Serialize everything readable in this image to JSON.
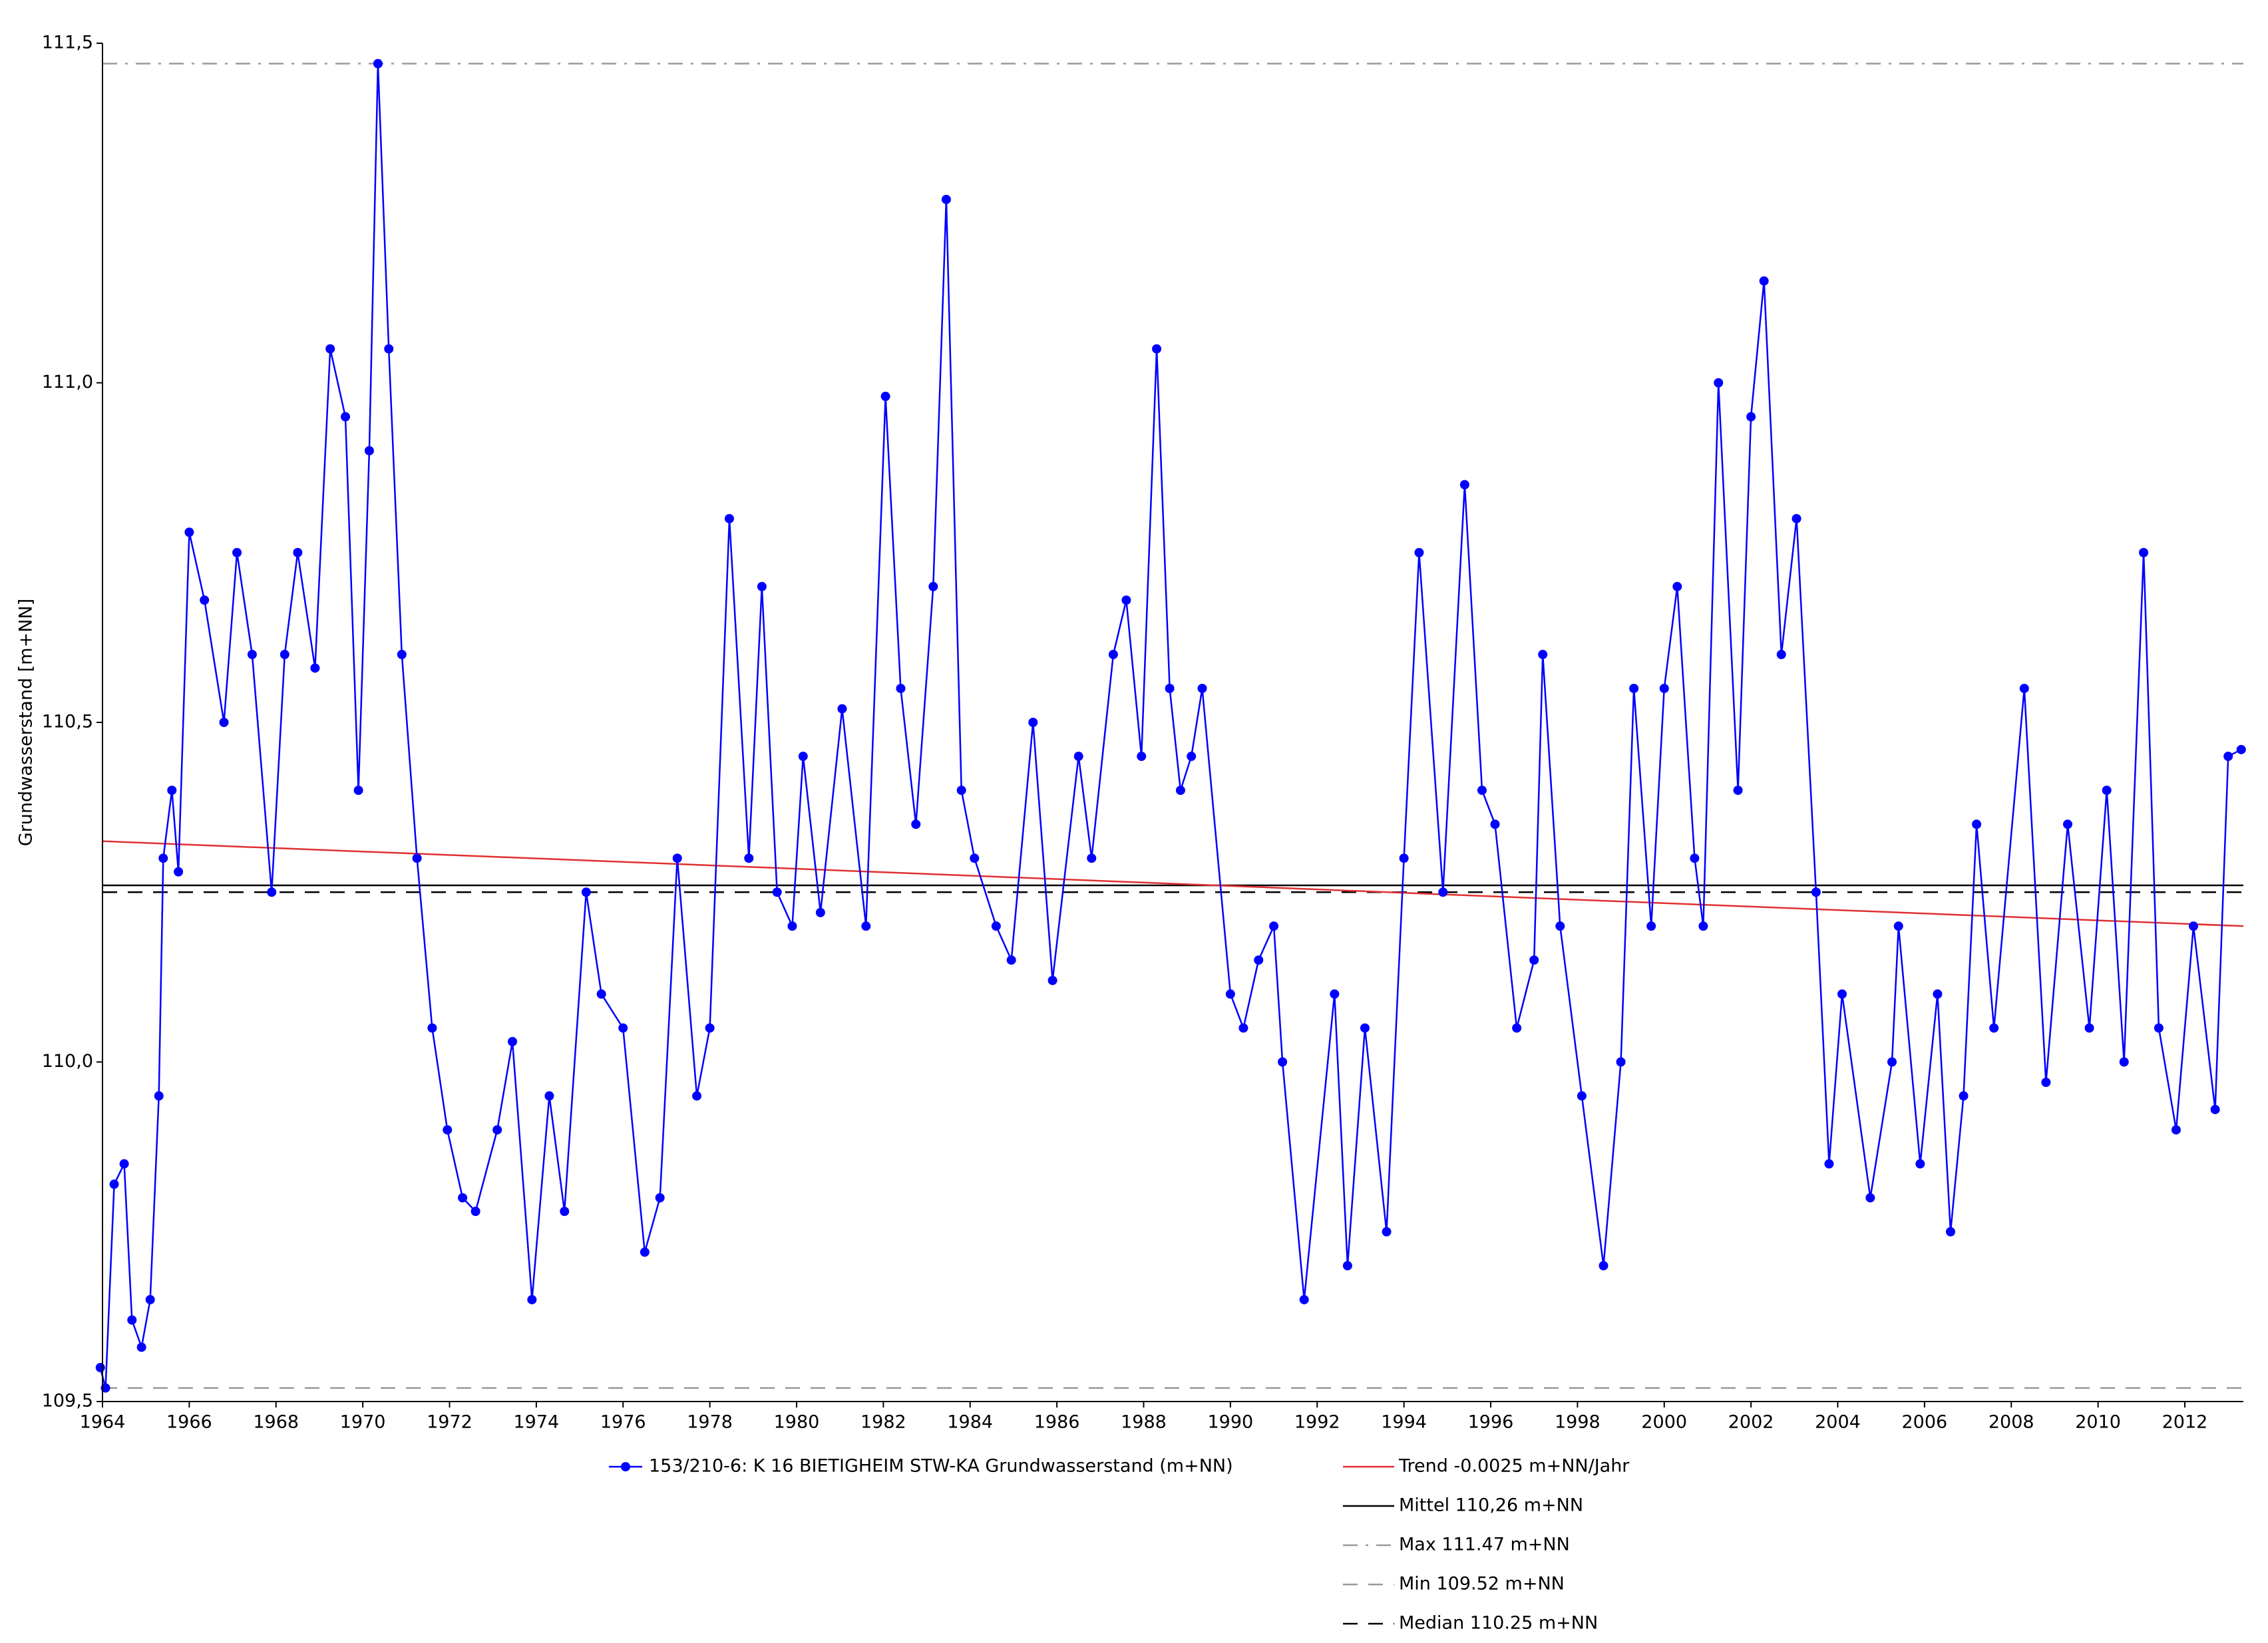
{
  "chart_data": {
    "type": "line",
    "y_label": "Grundwasserstand [m+NN]",
    "xlim": [
      1964,
      2013.35
    ],
    "ylim": [
      109.5,
      111.5
    ],
    "xticks": [
      1964,
      1966,
      1968,
      1970,
      1972,
      1974,
      1976,
      1978,
      1980,
      1982,
      1984,
      1986,
      1988,
      1990,
      1992,
      1994,
      1996,
      1998,
      2000,
      2002,
      2004,
      2006,
      2008,
      2010,
      2012
    ],
    "yticks": [
      {
        "value": 109.5,
        "label": "109,5"
      },
      {
        "value": 110.0,
        "label": "110,0"
      },
      {
        "value": 110.5,
        "label": "110,5"
      },
      {
        "value": 111.0,
        "label": "111,0"
      },
      {
        "value": 111.5,
        "label": "111,5"
      }
    ],
    "grid": false,
    "series": [
      {
        "name": "153/210-6: K 16 BIETIGHEIM STW-KA  Grundwasserstand (m+NN)",
        "color": "#0000ff",
        "x": [
          1963.95,
          1964.07,
          1964.27,
          1964.5,
          1964.68,
          1964.9,
          1965.1,
          1965.3,
          1965.4,
          1965.6,
          1965.75,
          1966.0,
          1966.35,
          1966.8,
          1967.1,
          1967.45,
          1967.9,
          1968.2,
          1968.5,
          1968.9,
          1969.25,
          1969.6,
          1969.9,
          1970.15,
          1970.35,
          1970.6,
          1970.9,
          1971.25,
          1971.6,
          1971.95,
          1972.3,
          1972.6,
          1973.1,
          1973.45,
          1973.9,
          1974.3,
          1974.65,
          1975.15,
          1975.5,
          1976.0,
          1976.5,
          1976.85,
          1977.25,
          1977.7,
          1978.0,
          1978.45,
          1978.9,
          1979.2,
          1979.55,
          1979.9,
          1980.15,
          1980.55,
          1981.05,
          1981.6,
          1982.05,
          1982.4,
          1982.75,
          1983.15,
          1983.45,
          1983.8,
          1984.1,
          1984.6,
          1984.95,
          1985.45,
          1985.9,
          1986.5,
          1986.8,
          1987.3,
          1987.6,
          1987.95,
          1988.3,
          1988.6,
          1988.85,
          1989.1,
          1989.35,
          1990.0,
          1990.3,
          1990.65,
          1991.0,
          1991.2,
          1991.7,
          1992.4,
          1992.7,
          1993.1,
          1993.6,
          1994.0,
          1994.35,
          1994.9,
          1995.4,
          1995.8,
          1996.1,
          1996.6,
          1997.0,
          1997.2,
          1997.6,
          1998.1,
          1998.6,
          1999.0,
          1999.3,
          1999.7,
          2000.0,
          2000.3,
          2000.7,
          2000.9,
          2001.25,
          2001.7,
          2002.0,
          2002.3,
          2002.7,
          2003.05,
          2003.5,
          2003.8,
          2004.1,
          2004.75,
          2005.25,
          2005.4,
          2005.9,
          2006.3,
          2006.6,
          2006.9,
          2007.2,
          2007.6,
          2008.3,
          2008.8,
          2009.3,
          2009.8,
          2010.2,
          2010.6,
          2011.05,
          2011.4,
          2011.8,
          2012.2,
          2012.7,
          2013.0,
          2013.3
        ],
        "values": [
          109.55,
          109.52,
          109.82,
          109.85,
          109.62,
          109.58,
          109.65,
          109.95,
          110.3,
          110.4,
          110.28,
          110.78,
          110.68,
          110.5,
          110.75,
          110.6,
          110.25,
          110.6,
          110.75,
          110.58,
          111.05,
          110.95,
          110.4,
          110.9,
          111.47,
          111.05,
          110.6,
          110.3,
          110.05,
          109.9,
          109.8,
          109.78,
          109.9,
          110.03,
          109.65,
          109.95,
          109.78,
          110.25,
          110.1,
          110.05,
          109.72,
          109.8,
          110.3,
          109.95,
          110.05,
          110.8,
          110.3,
          110.7,
          110.25,
          110.2,
          110.45,
          110.22,
          110.52,
          110.2,
          110.98,
          110.55,
          110.35,
          110.7,
          111.27,
          110.4,
          110.3,
          110.2,
          110.15,
          110.5,
          110.12,
          110.45,
          110.3,
          110.6,
          110.68,
          110.45,
          111.05,
          110.55,
          110.4,
          110.45,
          110.55,
          110.1,
          110.05,
          110.15,
          110.2,
          110.0,
          109.65,
          110.1,
          109.7,
          110.05,
          109.75,
          110.3,
          110.75,
          110.25,
          110.85,
          110.4,
          110.35,
          110.05,
          110.15,
          110.6,
          110.2,
          109.95,
          109.7,
          110.0,
          110.55,
          110.2,
          110.55,
          110.7,
          110.3,
          110.2,
          111.0,
          110.4,
          110.95,
          111.15,
          110.6,
          110.8,
          110.25,
          109.85,
          110.1,
          109.8,
          110.0,
          110.2,
          109.85,
          110.1,
          109.75,
          109.95,
          110.35,
          110.05,
          110.55,
          109.97,
          110.35,
          110.05,
          110.4,
          110.0,
          110.75,
          110.05,
          109.9,
          110.2,
          109.93,
          110.45,
          110.46
        ]
      }
    ],
    "trend": {
      "name": "Trend -0.0025 m+NN/Jahr",
      "color": "#e03030",
      "x": [
        1964,
        2013.35
      ],
      "values": [
        110.325,
        110.2
      ]
    },
    "reference_lines": [
      {
        "name": "Mittel 110,26 m+NN",
        "value": 110.26,
        "color": "#000000",
        "style": "solid"
      },
      {
        "name": "Max 111.47 m+NN",
        "value": 111.47,
        "color": "#999999",
        "style": "dashdot"
      },
      {
        "name": "Min 109.52 m+NN",
        "value": 109.52,
        "color": "#999999",
        "style": "dashed"
      },
      {
        "name": "Median 110.25 m+NN",
        "value": 110.25,
        "color": "#000000",
        "style": "dashed"
      }
    ]
  }
}
